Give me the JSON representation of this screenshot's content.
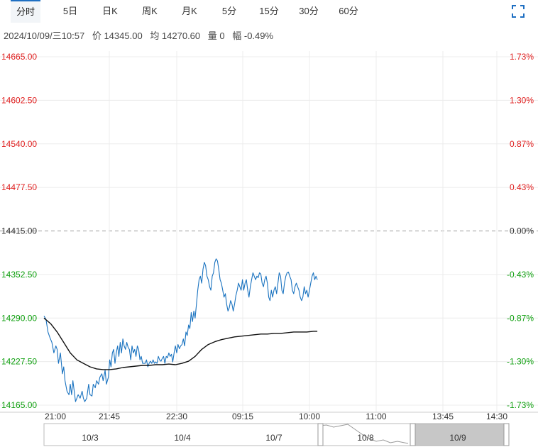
{
  "tabs": [
    {
      "label": "分时",
      "active": true
    },
    {
      "label": "5日"
    },
    {
      "label": "日K"
    },
    {
      "label": "周K"
    },
    {
      "label": "月K"
    },
    {
      "label": "5分"
    },
    {
      "label": "15分"
    },
    {
      "label": "30分"
    },
    {
      "label": "60分"
    }
  ],
  "info": {
    "datetime": "2024/10/09/三10:57",
    "price": "价 14345.00",
    "avg": "均 14270.60",
    "volume": "量 0",
    "change": "幅 -0.49%"
  },
  "colors": {
    "up": "#e02020",
    "down": "#10a010",
    "price_line": "#1a73c0",
    "avg_line": "#111111",
    "accent": "#1e6fc2"
  },
  "chart_data": {
    "type": "line",
    "prev_close": 14415.0,
    "y_ticks_left": [
      "14665.00",
      "14602.50",
      "14540.00",
      "14477.50",
      "14415.00",
      "14352.50",
      "14290.00",
      "14227.50",
      "14165.00"
    ],
    "y_ticks_right": [
      "1.73%",
      "1.30%",
      "0.87%",
      "0.43%",
      "0.00%",
      "-0.43%",
      "-0.87%",
      "-1.30%",
      "-1.73%"
    ],
    "ylim": [
      14165.0,
      14665.0
    ],
    "x_ticks": [
      "21:00",
      "21:45",
      "22:30",
      "09:15",
      "10:00",
      "11:00",
      "13:45",
      "14:30"
    ],
    "x_max": 700,
    "series": [
      {
        "name": "价",
        "points": [
          [
            0,
            14293
          ],
          [
            3,
            14288
          ],
          [
            6,
            14270
          ],
          [
            9,
            14262
          ],
          [
            12,
            14255
          ],
          [
            15,
            14240
          ],
          [
            18,
            14250
          ],
          [
            20,
            14245
          ],
          [
            22,
            14225
          ],
          [
            25,
            14240
          ],
          [
            28,
            14210
          ],
          [
            30,
            14220
          ],
          [
            32,
            14200
          ],
          [
            35,
            14185
          ],
          [
            38,
            14180
          ],
          [
            40,
            14195
          ],
          [
            42,
            14180
          ],
          [
            44,
            14200
          ],
          [
            46,
            14185
          ],
          [
            48,
            14170
          ],
          [
            50,
            14175
          ],
          [
            52,
            14180
          ],
          [
            55,
            14175
          ],
          [
            58,
            14185
          ],
          [
            60,
            14175
          ],
          [
            62,
            14170
          ],
          [
            65,
            14175
          ],
          [
            68,
            14195
          ],
          [
            70,
            14180
          ],
          [
            73,
            14178
          ],
          [
            75,
            14195
          ],
          [
            78,
            14190
          ],
          [
            80,
            14200
          ],
          [
            83,
            14195
          ],
          [
            85,
            14205
          ],
          [
            88,
            14210
          ],
          [
            90,
            14200
          ],
          [
            93,
            14215
          ],
          [
            95,
            14195
          ],
          [
            98,
            14205
          ],
          [
            100,
            14230
          ],
          [
            102,
            14220
          ],
          [
            104,
            14240
          ],
          [
            106,
            14245
          ],
          [
            108,
            14225
          ],
          [
            110,
            14240
          ],
          [
            112,
            14250
          ],
          [
            114,
            14235
          ],
          [
            116,
            14255
          ],
          [
            118,
            14240
          ],
          [
            120,
            14260
          ],
          [
            122,
            14250
          ],
          [
            124,
            14245
          ],
          [
            126,
            14255
          ],
          [
            128,
            14248
          ],
          [
            130,
            14245
          ],
          [
            132,
            14230
          ],
          [
            134,
            14250
          ],
          [
            136,
            14240
          ],
          [
            138,
            14245
          ],
          [
            140,
            14235
          ],
          [
            142,
            14250
          ],
          [
            144,
            14245
          ],
          [
            146,
            14230
          ],
          [
            148,
            14235
          ],
          [
            150,
            14225
          ],
          [
            152,
            14225
          ],
          [
            154,
            14225
          ],
          [
            156,
            14230
          ],
          [
            158,
            14220
          ],
          [
            160,
            14225
          ],
          [
            162,
            14228
          ],
          [
            164,
            14225
          ],
          [
            166,
            14230
          ],
          [
            168,
            14225
          ],
          [
            170,
            14227
          ],
          [
            172,
            14225
          ],
          [
            174,
            14235
          ],
          [
            176,
            14230
          ],
          [
            178,
            14228
          ],
          [
            180,
            14232
          ],
          [
            182,
            14235
          ],
          [
            184,
            14225
          ],
          [
            186,
            14235
          ],
          [
            188,
            14233
          ],
          [
            190,
            14240
          ],
          [
            192,
            14235
          ],
          [
            194,
            14238
          ],
          [
            196,
            14227
          ],
          [
            198,
            14240
          ],
          [
            200,
            14250
          ],
          [
            202,
            14240
          ],
          [
            204,
            14252
          ],
          [
            206,
            14246
          ],
          [
            208,
            14250
          ],
          [
            210,
            14252
          ],
          [
            212,
            14260
          ],
          [
            214,
            14250
          ],
          [
            216,
            14270
          ],
          [
            218,
            14265
          ],
          [
            220,
            14280
          ],
          [
            222,
            14275
          ],
          [
            224,
            14298
          ],
          [
            226,
            14285
          ],
          [
            228,
            14300
          ],
          [
            230,
            14290
          ],
          [
            232,
            14310
          ],
          [
            234,
            14330
          ],
          [
            236,
            14345
          ],
          [
            238,
            14350
          ],
          [
            240,
            14340
          ],
          [
            242,
            14360
          ],
          [
            244,
            14370
          ],
          [
            246,
            14365
          ],
          [
            248,
            14350
          ],
          [
            250,
            14345
          ],
          [
            252,
            14335
          ],
          [
            254,
            14330
          ],
          [
            256,
            14350
          ],
          [
            258,
            14355
          ],
          [
            260,
            14370
          ],
          [
            262,
            14375
          ],
          [
            264,
            14372
          ],
          [
            266,
            14360
          ],
          [
            268,
            14345
          ],
          [
            270,
            14340
          ],
          [
            272,
            14330
          ],
          [
            274,
            14320
          ],
          [
            276,
            14325
          ],
          [
            278,
            14310
          ],
          [
            280,
            14300
          ],
          [
            282,
            14305
          ],
          [
            284,
            14315
          ],
          [
            286,
            14310
          ],
          [
            288,
            14300
          ],
          [
            290,
            14310
          ],
          [
            292,
            14322
          ],
          [
            294,
            14330
          ],
          [
            296,
            14340
          ],
          [
            298,
            14335
          ],
          [
            300,
            14330
          ],
          [
            302,
            14345
          ],
          [
            304,
            14330
          ],
          [
            306,
            14340
          ],
          [
            308,
            14345
          ],
          [
            310,
            14330
          ],
          [
            312,
            14320
          ],
          [
            314,
            14335
          ],
          [
            316,
            14345
          ],
          [
            318,
            14355
          ],
          [
            320,
            14350
          ],
          [
            322,
            14345
          ],
          [
            324,
            14350
          ],
          [
            326,
            14348
          ],
          [
            328,
            14355
          ],
          [
            330,
            14353
          ],
          [
            332,
            14340
          ],
          [
            334,
            14335
          ],
          [
            336,
            14345
          ],
          [
            338,
            14350
          ],
          [
            340,
            14340
          ],
          [
            342,
            14320
          ],
          [
            344,
            14315
          ],
          [
            346,
            14330
          ],
          [
            348,
            14320
          ],
          [
            350,
            14330
          ],
          [
            352,
            14335
          ],
          [
            354,
            14325
          ],
          [
            356,
            14340
          ],
          [
            358,
            14355
          ],
          [
            360,
            14350
          ],
          [
            362,
            14330
          ],
          [
            364,
            14325
          ],
          [
            366,
            14340
          ],
          [
            368,
            14350
          ],
          [
            370,
            14355
          ],
          [
            372,
            14356
          ],
          [
            374,
            14350
          ],
          [
            376,
            14345
          ],
          [
            378,
            14330
          ],
          [
            380,
            14325
          ],
          [
            382,
            14335
          ],
          [
            384,
            14340
          ],
          [
            386,
            14335
          ],
          [
            388,
            14330
          ],
          [
            390,
            14320
          ],
          [
            392,
            14315
          ],
          [
            394,
            14320
          ],
          [
            396,
            14335
          ],
          [
            398,
            14325
          ],
          [
            400,
            14330
          ],
          [
            402,
            14320
          ],
          [
            404,
            14330
          ],
          [
            406,
            14340
          ],
          [
            408,
            14350
          ],
          [
            410,
            14355
          ],
          [
            412,
            14345
          ],
          [
            414,
            14350
          ],
          [
            416,
            14345
          ]
        ]
      },
      {
        "name": "均",
        "points": [
          [
            0,
            14290
          ],
          [
            10,
            14282
          ],
          [
            20,
            14270
          ],
          [
            30,
            14255
          ],
          [
            40,
            14240
          ],
          [
            50,
            14230
          ],
          [
            60,
            14225
          ],
          [
            70,
            14220
          ],
          [
            80,
            14217
          ],
          [
            90,
            14216
          ],
          [
            100,
            14216
          ],
          [
            110,
            14217
          ],
          [
            120,
            14219
          ],
          [
            130,
            14220
          ],
          [
            140,
            14221
          ],
          [
            150,
            14222
          ],
          [
            160,
            14222
          ],
          [
            170,
            14223
          ],
          [
            180,
            14223
          ],
          [
            190,
            14224
          ],
          [
            200,
            14223
          ],
          [
            210,
            14225
          ],
          [
            220,
            14228
          ],
          [
            230,
            14235
          ],
          [
            240,
            14245
          ],
          [
            250,
            14252
          ],
          [
            260,
            14256
          ],
          [
            270,
            14259
          ],
          [
            280,
            14261
          ],
          [
            290,
            14263
          ],
          [
            300,
            14264
          ],
          [
            310,
            14265
          ],
          [
            320,
            14266
          ],
          [
            330,
            14267
          ],
          [
            340,
            14267
          ],
          [
            350,
            14268
          ],
          [
            360,
            14268
          ],
          [
            370,
            14269
          ],
          [
            380,
            14270
          ],
          [
            390,
            14270
          ],
          [
            400,
            14270
          ],
          [
            410,
            14271
          ],
          [
            416,
            14271
          ]
        ]
      }
    ]
  },
  "navigator": {
    "labels": [
      "10/3",
      "10/4",
      "10/7",
      "10/8",
      "10/9"
    ],
    "left_handle": "|||",
    "right_handle": "|||"
  }
}
